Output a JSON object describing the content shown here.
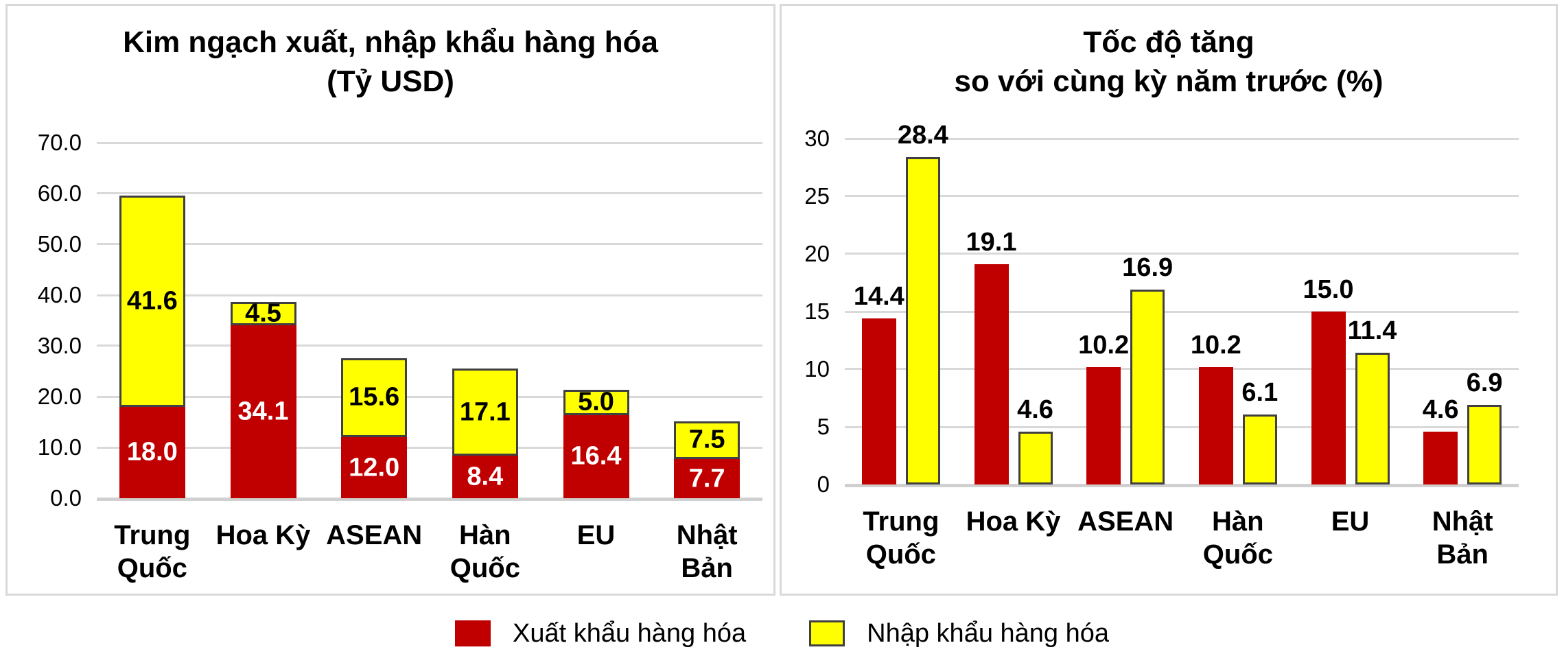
{
  "page": {
    "background": "#FFFFFF"
  },
  "colors": {
    "export_red": "#C00000",
    "import_yellow": "#FFFF00",
    "bar_border": "#404040",
    "gridline": "#D9D9D9",
    "axis_line": "#D0D0D0",
    "panel_border": "#D9D9D9",
    "text": "#000000"
  },
  "legend": {
    "items": [
      {
        "label": "Xuất khẩu hàng hóa",
        "color": "#C00000"
      },
      {
        "label": "Nhập khẩu hàng hóa",
        "color": "#FFFF00"
      }
    ]
  },
  "chart_data": [
    {
      "type": "bar",
      "subtype": "stacked",
      "title": "Kim ngạch xuất, nhập khẩu hàng hóa (Tỷ USD)",
      "title_lines": [
        "Kim ngạch xuất, nhập khẩu hàng hóa",
        "(Tỷ USD)"
      ],
      "categories": [
        "Trung Quốc",
        "Hoa Kỳ",
        "ASEAN",
        "Hàn Quốc",
        "EU",
        "Nhật Bản"
      ],
      "categories_lines": [
        [
          "Trung",
          "Quốc"
        ],
        [
          "Hoa Kỳ"
        ],
        [
          "ASEAN"
        ],
        [
          "Hàn",
          "Quốc"
        ],
        [
          "EU"
        ],
        [
          "Nhật",
          "Bản"
        ]
      ],
      "series": [
        {
          "name": "Xuất khẩu hàng hóa",
          "color": "#C00000",
          "label_color": "#FFFFFF",
          "values": [
            18.0,
            34.1,
            12.0,
            8.4,
            16.4,
            7.7
          ]
        },
        {
          "name": "Nhập khẩu hàng hóa",
          "color": "#FFFF00",
          "label_color": "#000000",
          "values": [
            41.6,
            4.5,
            15.6,
            17.1,
            5.0,
            7.5
          ]
        }
      ],
      "ylim": [
        0,
        70
      ],
      "ytick_step": 10,
      "ytick_labels": [
        "0.0",
        "10.0",
        "20.0",
        "30.0",
        "40.0",
        "50.0",
        "60.0",
        "70.0"
      ],
      "value_label_decimals": 1,
      "grid": true,
      "legend_position": "bottom"
    },
    {
      "type": "bar",
      "subtype": "grouped",
      "title": "Tốc độ tăng so với cùng kỳ năm trước (%)",
      "title_lines": [
        "Tốc độ tăng",
        "so với cùng kỳ năm trước (%)"
      ],
      "categories": [
        "Trung Quốc",
        "Hoa Kỳ",
        "ASEAN",
        "Hàn Quốc",
        "EU",
        "Nhật Bản"
      ],
      "categories_lines": [
        [
          "Trung",
          "Quốc"
        ],
        [
          "Hoa Kỳ"
        ],
        [
          "ASEAN"
        ],
        [
          "Hàn",
          "Quốc"
        ],
        [
          "EU"
        ],
        [
          "Nhật",
          "Bản"
        ]
      ],
      "series": [
        {
          "name": "Xuất khẩu hàng hóa",
          "color": "#C00000",
          "label_color": "#000000",
          "values": [
            14.4,
            19.1,
            10.2,
            10.2,
            15.0,
            4.6
          ]
        },
        {
          "name": "Nhập khẩu hàng hóa",
          "color": "#FFFF00",
          "label_color": "#000000",
          "values": [
            28.4,
            4.6,
            16.9,
            6.1,
            11.4,
            6.9
          ]
        }
      ],
      "ylim": [
        0,
        30
      ],
      "ytick_step": 5,
      "ytick_labels": [
        "0",
        "5",
        "10",
        "15",
        "20",
        "25",
        "30"
      ],
      "value_label_decimals": 1,
      "grid": true,
      "legend_position": "bottom"
    }
  ]
}
